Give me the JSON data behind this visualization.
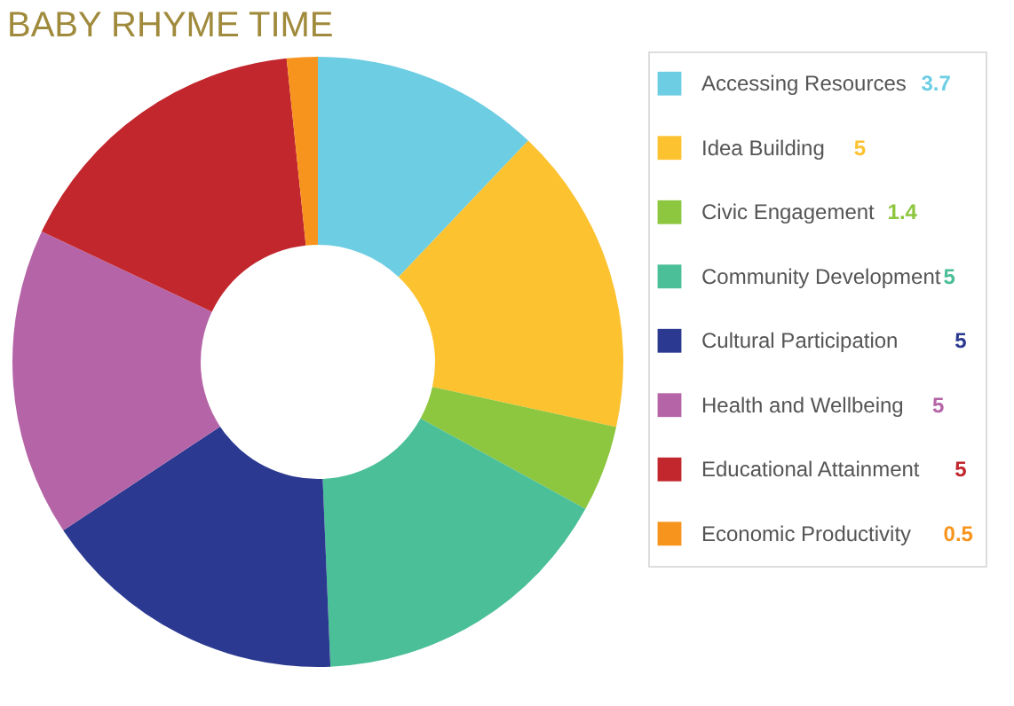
{
  "chart_data": {
    "type": "donut",
    "title": "BABY RHYME TIME",
    "categories": [
      "Accessing Resources",
      "Idea Building",
      "Civic Engagement",
      "Community Development",
      "Cultural Participation",
      "Health and Wellbeing",
      "Educational Attainment",
      "Economic Productivity"
    ],
    "values": [
      3.7,
      5,
      1.4,
      5,
      5,
      5,
      5,
      0.5
    ],
    "colors": [
      "#6dcde3",
      "#fcc230",
      "#8dc63f",
      "#4bbf97",
      "#2b3990",
      "#b565a7",
      "#c1272d",
      "#f7941d"
    ],
    "data_labels": true,
    "legend": "right"
  }
}
